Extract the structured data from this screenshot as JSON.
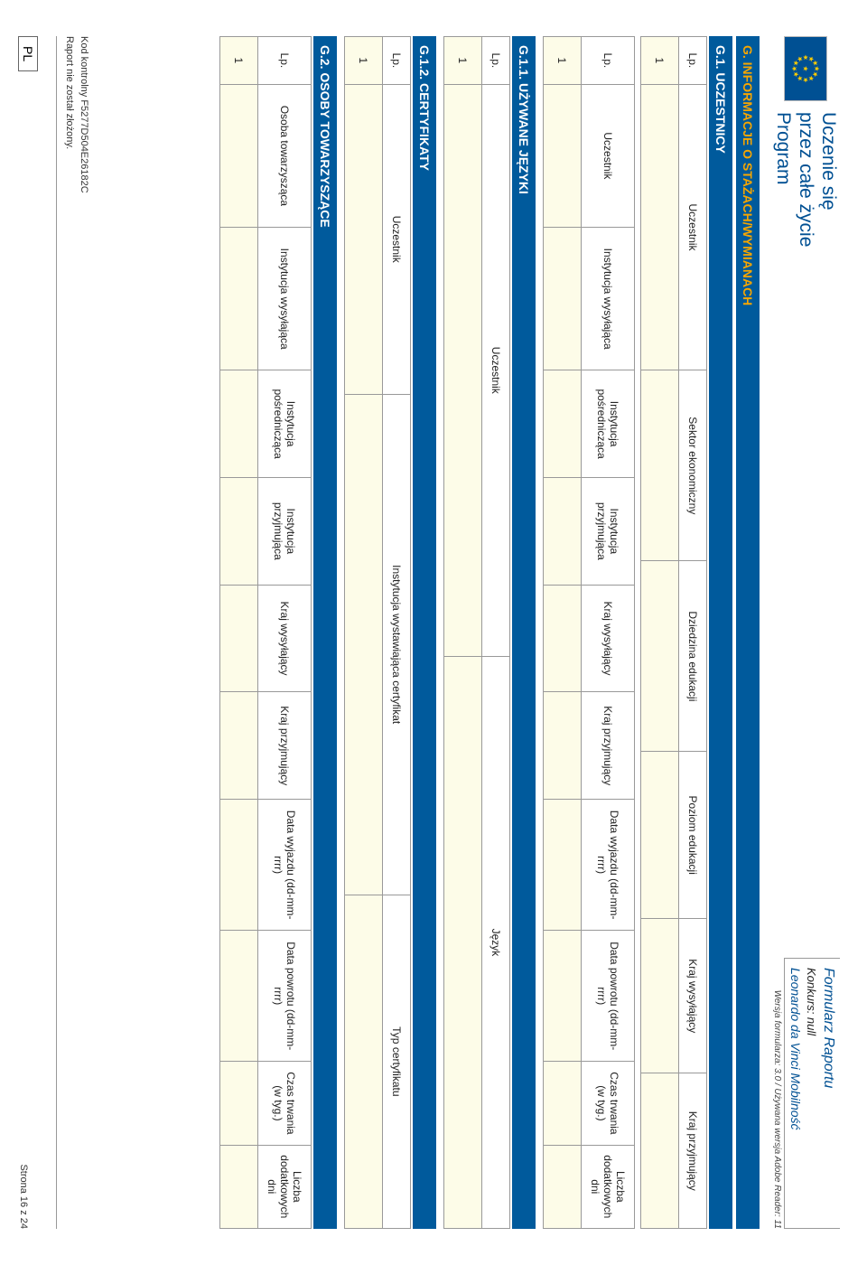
{
  "header": {
    "program_line1": "Uczenie się",
    "program_line2": "przez całe życie",
    "program_line3": "Program",
    "form_title": "Formularz Raportu",
    "konkurs": "Konkurs: null",
    "subprogram": "Leonardo da Vinci Mobilność",
    "version": "Wersja formularza: 3.0 / Używana wersja Adobe Reader: 11"
  },
  "colors": {
    "band_bg": "#005a9c",
    "band_main_fg": "#f7a600",
    "band_sub_fg": "#ffffff",
    "input_bg": "#fdfce8",
    "border": "#999999",
    "brand": "#005093"
  },
  "sections": {
    "g": "G. INFORMACJE O STAŻACH/WYMIANACH",
    "g1": "G.1. UCZESTNICY",
    "g11": "G.1.1. UŻYWANE JĘZYKI",
    "g12": "G.1.2. CERTYFIKATY",
    "g2": "G.2. OSOBY TOWARZYSZĄCE"
  },
  "tables": {
    "t1": {
      "cols": [
        "Lp.",
        "Uczestnik",
        "Sektor ekonomiczny",
        "Dziedzina edukacji",
        "Poziom edukacji",
        "Kraj wysyłający",
        "Kraj przyjmujący"
      ],
      "widths": [
        4,
        24,
        16,
        16,
        14,
        13,
        13
      ],
      "rows": [
        [
          "1",
          "",
          "",
          "",
          "",
          "",
          ""
        ]
      ]
    },
    "t2": {
      "cols": [
        "Lp.",
        "Uczestnik",
        "Instytucja wysyłająca",
        "Instytucja pośrednicząca",
        "Instytucja przyjmująca",
        "Kraj wysyłający",
        "Kraj przyjmujący",
        "Data wyjazdu (dd-mm-rrrr)",
        "Data powrotu (dd-mm-rrrr)",
        "Czas trwania (w tyg.)",
        "Liczba dodatkowych dni"
      ],
      "widths": [
        4,
        12,
        12,
        9,
        9,
        9,
        9,
        11,
        11,
        7,
        7
      ],
      "rows": [
        [
          "1",
          "",
          "",
          "",
          "",
          "",
          "",
          "",
          "",
          "",
          ""
        ]
      ]
    },
    "t3": {
      "cols": [
        "Lp.",
        "Uczestnik",
        "Język"
      ],
      "widths": [
        4,
        48,
        48
      ],
      "rows": [
        [
          "1",
          "",
          ""
        ]
      ]
    },
    "t4": {
      "cols": [
        "Lp.",
        "Uczestnik",
        "Instytucja wystawiająca certyfikat",
        "Typ certyfikatu"
      ],
      "widths": [
        4,
        26,
        42,
        28
      ],
      "rows": [
        [
          "1",
          "",
          "",
          ""
        ]
      ]
    },
    "t5": {
      "cols": [
        "Lp.",
        "Osoba towarzysząca",
        "Instytucja wysyłająca",
        "Instytucja pośrednicząca",
        "Instytucja przyjmująca",
        "Kraj wysyłający",
        "Kraj przyjmujący",
        "Data wyjazdu (dd-mm-rrrr)",
        "Data powrotu (dd-mm-rrrr)",
        "Czas trwania (w tyg.)",
        "Liczba dodatkowych dni"
      ],
      "widths": [
        4,
        12,
        12,
        9,
        9,
        9,
        9,
        11,
        11,
        7,
        7
      ],
      "rows": [
        [
          "1",
          "",
          "",
          "",
          "",
          "",
          "",
          "",
          "",
          "",
          ""
        ]
      ]
    }
  },
  "footer": {
    "code": "Kod kontrolny F5277D504E26182C",
    "status": "Raport nie został złożony.",
    "lang": "PL",
    "page": "Strona 16 z 24"
  }
}
